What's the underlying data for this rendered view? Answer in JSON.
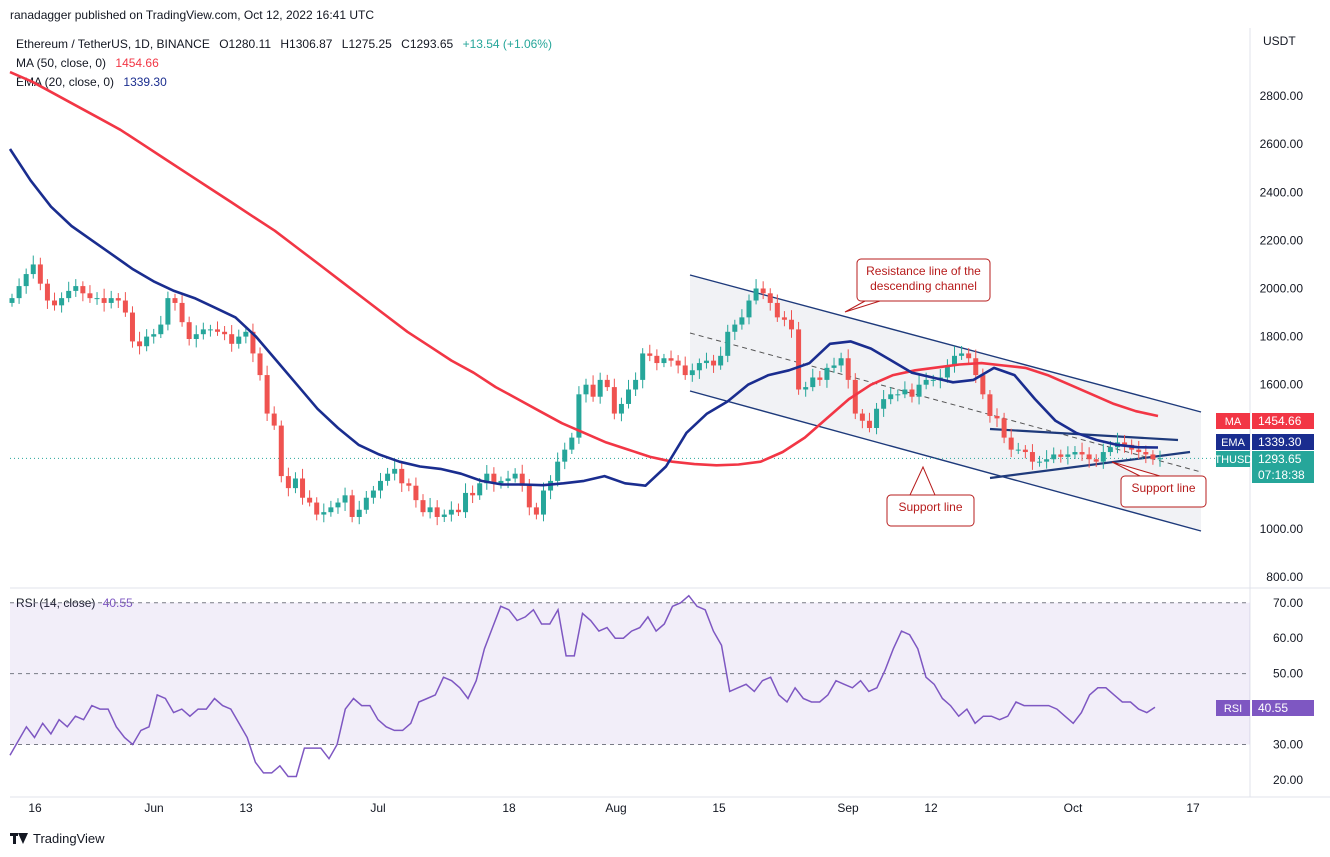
{
  "publisher": "ranadagger published on TradingView.com, Oct 12, 2022 16:41 UTC",
  "brand": "TradingView",
  "legend": {
    "symbol": "Ethereum / TetherUS, 1D, BINANCE",
    "open": "O1280.11",
    "high": "H1306.87",
    "low": "L1275.25",
    "close": "C1293.65",
    "change": "+13.54 (+1.06%)",
    "ma_label": "MA (50, close, 0)",
    "ma_value": "1454.66",
    "ema_label": "EMA (20, close, 0)",
    "ema_value": "1339.30"
  },
  "unit": "USDT",
  "colors": {
    "up": "#26a69a",
    "down": "#ef5350",
    "ma": "#f23645",
    "ema": "#1a2d8f",
    "trend": "#1e3a7b",
    "rsi": "#7e57c2",
    "annotation_border": "#b71c1c",
    "channel_fill": "#eef0f3"
  },
  "chart_data": [
    {
      "type": "candlestick",
      "title": "Ethereum / TetherUS, 1D, BINANCE",
      "x_ticks": [
        "16",
        "Jun",
        "13",
        "Jul",
        "18",
        "Aug",
        "15",
        "Sep",
        "12",
        "Oct",
        "17"
      ],
      "y_ticks": [
        "1000.00",
        "1200.00",
        "1400.00",
        "1600.00",
        "1800.00",
        "2000.00",
        "2200.00",
        "2400.00",
        "2600.00",
        "2800.00",
        "800.00"
      ],
      "ylim": [
        800,
        2900
      ],
      "last_close": 1293.65,
      "price_tags": [
        {
          "name": "MA",
          "value": "1454.66"
        },
        {
          "name": "EMA",
          "value": "1339.30"
        },
        {
          "name": "ETHUSDT",
          "value": "1293.65",
          "sub": "07:18:38"
        }
      ],
      "closes_approx": [
        1960,
        2010,
        2060,
        2100,
        2020,
        1950,
        1930,
        1960,
        1990,
        2010,
        1980,
        1960,
        1960,
        1940,
        1960,
        1950,
        1900,
        1780,
        1760,
        1800,
        1810,
        1850,
        1960,
        1940,
        1860,
        1790,
        1810,
        1830,
        1830,
        1820,
        1810,
        1770,
        1800,
        1820,
        1730,
        1640,
        1480,
        1430,
        1220,
        1170,
        1210,
        1130,
        1110,
        1060,
        1070,
        1090,
        1110,
        1140,
        1050,
        1080,
        1130,
        1160,
        1200,
        1230,
        1250,
        1190,
        1180,
        1120,
        1070,
        1090,
        1050,
        1060,
        1080,
        1070,
        1150,
        1140,
        1190,
        1230,
        1190,
        1200,
        1210,
        1230,
        1180,
        1090,
        1060,
        1160,
        1200,
        1280,
        1330,
        1380,
        1560,
        1600,
        1550,
        1620,
        1590,
        1480,
        1520,
        1580,
        1620,
        1730,
        1720,
        1690,
        1710,
        1700,
        1680,
        1640,
        1660,
        1690,
        1700,
        1680,
        1720,
        1820,
        1850,
        1880,
        1950,
        2000,
        1980,
        1940,
        1880,
        1870,
        1830,
        1580,
        1590,
        1630,
        1620,
        1670,
        1680,
        1710,
        1620,
        1480,
        1450,
        1420,
        1500,
        1540,
        1560,
        1560,
        1580,
        1550,
        1600,
        1620,
        1620,
        1630,
        1680,
        1720,
        1730,
        1710,
        1640,
        1560,
        1470,
        1460,
        1380,
        1330,
        1330,
        1320,
        1280,
        1280,
        1290,
        1310,
        1300,
        1310,
        1320,
        1310,
        1290,
        1280,
        1320,
        1340,
        1360,
        1350,
        1330,
        1320,
        1310,
        1290,
        1294
      ],
      "ma_series_approx": [
        2900,
        2860,
        2810,
        2760,
        2710,
        2660,
        2600,
        2540,
        2480,
        2420,
        2360,
        2300,
        2240,
        2170,
        2100,
        2030,
        1960,
        1890,
        1820,
        1760,
        1700,
        1650,
        1590,
        1540,
        1490,
        1440,
        1400,
        1360,
        1330,
        1300,
        1280,
        1270,
        1265,
        1268,
        1280,
        1320,
        1380,
        1460,
        1540,
        1600,
        1640,
        1660,
        1672,
        1684,
        1690,
        1680,
        1670,
        1640,
        1600,
        1560,
        1520,
        1490,
        1470
      ],
      "ema_series_approx": [
        2580,
        2450,
        2340,
        2260,
        2200,
        2140,
        2080,
        2030,
        1990,
        1960,
        1920,
        1880,
        1800,
        1700,
        1600,
        1500,
        1420,
        1350,
        1310,
        1280,
        1260,
        1250,
        1230,
        1200,
        1185,
        1185,
        1182,
        1190,
        1200,
        1220,
        1190,
        1180,
        1260,
        1400,
        1480,
        1530,
        1600,
        1640,
        1660,
        1690,
        1770,
        1780,
        1750,
        1700,
        1650,
        1630,
        1610,
        1620,
        1670,
        1640,
        1540,
        1450,
        1400,
        1370,
        1350,
        1340,
        1339
      ]
    },
    {
      "type": "line",
      "title": "RSI (14, close)",
      "value": "40.55",
      "y_ticks": [
        "20.00",
        "30.00",
        "40.00",
        "50.00",
        "60.00",
        "70.00"
      ],
      "ylim": [
        17,
        72
      ],
      "levels": [
        30,
        50,
        70
      ],
      "series": [
        {
          "values": [
            27,
            31,
            35,
            32,
            36,
            33,
            37,
            35,
            38,
            37,
            41,
            40,
            40,
            35,
            32,
            30,
            34,
            35,
            44,
            43,
            39,
            40,
            38,
            40,
            40,
            43,
            41,
            40,
            36,
            32,
            25,
            22,
            22,
            24,
            21,
            21,
            29,
            29,
            29,
            26,
            30,
            40,
            43,
            41,
            41,
            37,
            35,
            34,
            34,
            36,
            42,
            43,
            44,
            49,
            48,
            46,
            43,
            48,
            57,
            63,
            69,
            68,
            65,
            66,
            68,
            64,
            64,
            68,
            55,
            55,
            67,
            65,
            62,
            63,
            60,
            60,
            62,
            63,
            66,
            62,
            64,
            69,
            70,
            72,
            69,
            68,
            62,
            58,
            45,
            46,
            47,
            45,
            48,
            49,
            44,
            42,
            46,
            43,
            42,
            42,
            44,
            48,
            47,
            46,
            48,
            45,
            46,
            51,
            57,
            62,
            61,
            57,
            49,
            47,
            43,
            41,
            38,
            40,
            36,
            38,
            38,
            37,
            38,
            42,
            41,
            41,
            41,
            41,
            40,
            38,
            36,
            39,
            44,
            46,
            46,
            44,
            42,
            42,
            40,
            39,
            40.55
          ]
        }
      ]
    }
  ],
  "annotations": {
    "resistance": "Resistance line of the\ndescending channel",
    "support_left": "Support line",
    "support_right": "Support line"
  },
  "rsi_tag": "RSI"
}
